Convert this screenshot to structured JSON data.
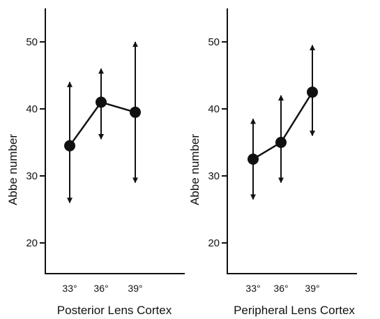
{
  "colors": {
    "ink": "#111111",
    "background": "#ffffff"
  },
  "chart_data": [
    {
      "type": "line",
      "subtitle": "Posterior Lens Cortex",
      "xlabel": "",
      "ylabel": "Abbe number",
      "categories": [
        "33°",
        "36°",
        "39°"
      ],
      "yticks": [
        20,
        30,
        40,
        50
      ],
      "ylim": [
        15,
        55
      ],
      "grid": false,
      "legend": "none",
      "series": [
        {
          "values": [
            34.5,
            41,
            39.5
          ],
          "error_upper": [
            44,
            46,
            50
          ],
          "error_lower": [
            26,
            35.5,
            29
          ]
        }
      ]
    },
    {
      "type": "line",
      "subtitle": "Peripheral Lens Cortex",
      "xlabel": "",
      "ylabel": "Abbe number",
      "categories": [
        "33°",
        "36°",
        "39°"
      ],
      "yticks": [
        20,
        30,
        40,
        50
      ],
      "ylim": [
        15,
        55
      ],
      "grid": false,
      "legend": "none",
      "series": [
        {
          "values": [
            32.5,
            35,
            42.5
          ],
          "error_upper": [
            38.5,
            42,
            49.5
          ],
          "error_lower": [
            26.5,
            29,
            36
          ]
        }
      ]
    }
  ]
}
